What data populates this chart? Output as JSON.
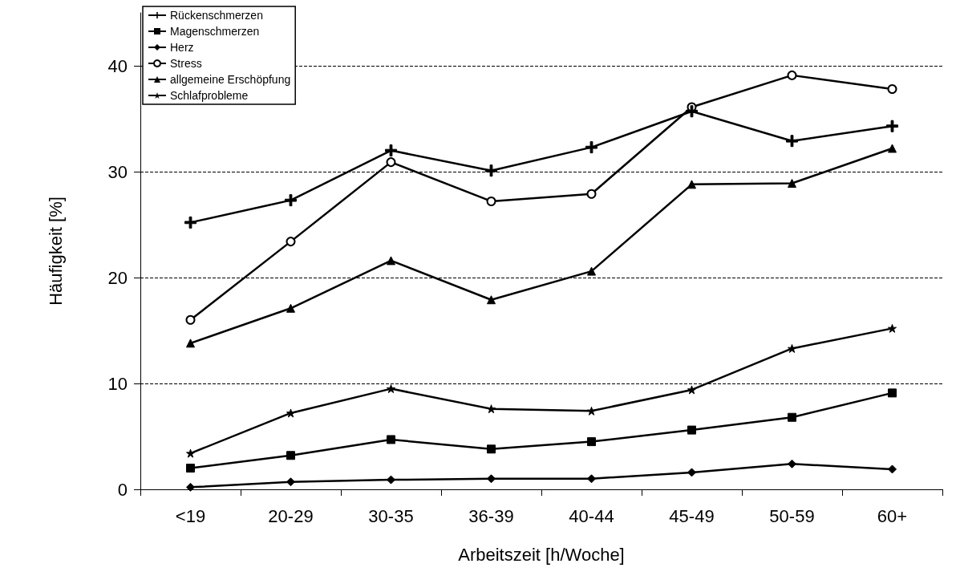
{
  "chart_data": {
    "type": "line",
    "xlabel": "Arbeitszeit [h/Woche]",
    "ylabel": "Häufigkeit [%]",
    "categories": [
      "<19",
      "20-29",
      "30-35",
      "36-39",
      "40-44",
      "45-49",
      "50-59",
      "60+"
    ],
    "ylim": [
      0,
      45
    ],
    "yticks": [
      0,
      10,
      20,
      30,
      40
    ],
    "grid": "y",
    "legend": "top left",
    "line_style": "solid",
    "series": [
      {
        "name": "Rückenschmerzen",
        "color": "#000000",
        "marker": "cross",
        "values": [
          25.2,
          27.3,
          32.0,
          30.1,
          32.3,
          35.7,
          32.9,
          34.3
        ]
      },
      {
        "name": "Magenschmerzen",
        "color": "#000000",
        "marker": "square",
        "values": [
          2.0,
          3.2,
          4.7,
          3.8,
          4.5,
          5.6,
          6.8,
          9.1
        ]
      },
      {
        "name": "Herz",
        "color": "#000000",
        "marker": "diamond",
        "values": [
          0.2,
          0.7,
          0.9,
          1.0,
          1.0,
          1.6,
          2.4,
          1.9
        ]
      },
      {
        "name": "Stress",
        "color": "#000000",
        "marker": "circle",
        "values": [
          16.0,
          23.4,
          30.9,
          27.2,
          27.9,
          36.1,
          39.1,
          37.8
        ]
      },
      {
        "name": "allgemeine Erschöpfung",
        "color": "#000000",
        "marker": "triangle",
        "values": [
          13.8,
          17.1,
          21.6,
          17.9,
          20.6,
          28.8,
          28.9,
          32.2
        ]
      },
      {
        "name": "Schlafprobleme",
        "color": "#000000",
        "marker": "star",
        "values": [
          3.4,
          7.2,
          9.5,
          7.6,
          7.4,
          9.4,
          13.3,
          15.2
        ]
      }
    ]
  }
}
